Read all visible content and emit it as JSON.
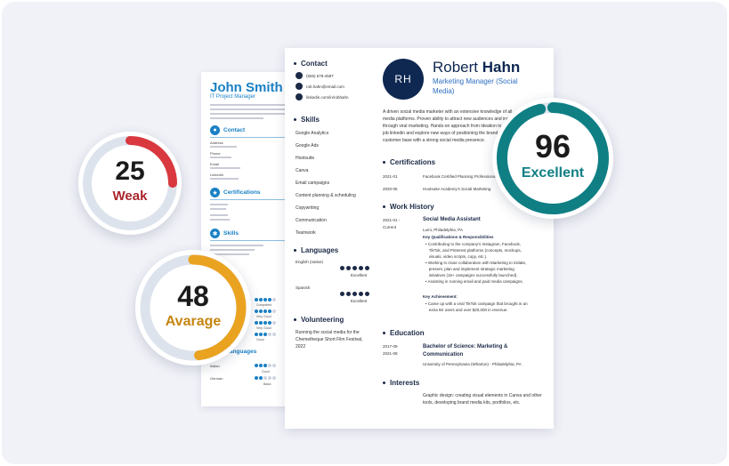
{
  "colors": {
    "frame_bg": "#f1f2f8",
    "navy": "#0e2851",
    "blue_accent": "#1a80c5",
    "weak": "#d9383f",
    "average": "#eaa321",
    "excellent": "#0f7f84",
    "ring_track": "#dde3ec"
  },
  "back_resume": {
    "name": "John Smith",
    "title": "IT Project Manager",
    "sections": {
      "contact": "Contact",
      "certifications": "Certifications",
      "skills": "Skills",
      "languages": "Languages"
    },
    "contact_labels": [
      "Address",
      "Phone",
      "Email",
      "LinkedIn"
    ],
    "skill_levels": [
      "Competent",
      "Very Good",
      "Very Good",
      "Good"
    ],
    "language_levels": [
      "Good",
      "Basic"
    ],
    "languages": [
      "Italian",
      "German"
    ]
  },
  "main_resume": {
    "initials": "RH",
    "first_name": "Robert",
    "last_name": "Hahn",
    "role": "Marketing Manager (Social Media)",
    "sections": {
      "contact": "Contact",
      "skills": "Skills",
      "languages": "Languages",
      "volunteering": "Volunteering",
      "certifications": "Certifications",
      "work_history": "Work History",
      "education": "Education",
      "interests": "Interests"
    },
    "contact_items": [
      {
        "icon": "phone-icon",
        "text": "(555) 678-4587"
      },
      {
        "icon": "email-icon",
        "text": "rob.hahn@email.com"
      },
      {
        "icon": "linkedin-icon",
        "text": "linkedin.com/in/robhahn"
      }
    ],
    "skills": [
      "Google Analytics",
      "Google Ads",
      "Hootsuite",
      "Canva",
      "Email campaigns",
      "Content planning & scheduling",
      "Copywriting",
      "Communication",
      "Teamwork"
    ],
    "languages": [
      {
        "name": "English (native)",
        "level": "Excellent"
      },
      {
        "name": "Spanish",
        "level": "Excellent"
      }
    ],
    "volunteering_text": [
      "Running the social media for the",
      "Chemetheque Short Film Festival,",
      "2022"
    ],
    "summary_lines": [
      "A driven social media marketer with an extensive knowledge of all",
      "media platforms. Proven ability to attract new audiences and increase",
      "through viral marketing. Hands-on approach from ideation to",
      "job linkedin and explore new ways of positioning the brand",
      "customer base with a strong social media presence."
    ],
    "certifications": [
      {
        "year": "2021-01",
        "name": "Facebook Certified Planning Professional"
      },
      {
        "year": "2020-05",
        "name": "Hootsuite Academy's Social Marketing"
      }
    ],
    "work": {
      "dates": "2021-01 -",
      "current": "Current",
      "title": "Social Media Assistant",
      "location": "Lumi, Philadelphia, PA",
      "key_label": "Key Qualifications & Responsibilities",
      "bullets": [
        "Contributing to the company's Instagram, Facebook,",
        "TikTok, and Pinterest platforms (concepts, mockups,",
        "visuals, video scripts, copy, etc.).",
        "Working in close collaboration with Marketing to initiate,",
        "present, plan and implement strategic marketing",
        "initiatives (15+ campaigns successfully launched).",
        "Assisting in running email and paid media campaigns."
      ],
      "achievement_label": "Key Achievement:",
      "achievement": [
        "Came up with a viral TikTok campaign that brought in an",
        "extra 5K users and over $20,000 in revenue."
      ]
    },
    "education": {
      "start": "2017-09",
      "end": "2021-08",
      "degree": [
        "Bachelor of Science: Marketing &",
        "Communication"
      ],
      "school": "University of Pennsylvania (Wharton) - Philadelphia, PA"
    },
    "interests_text": [
      "Graphic design: creating visual elements in Canva and other",
      "tools, developing brand media kits, portfolios, etc."
    ]
  },
  "scores": [
    {
      "id": "weak",
      "value": "25",
      "label": "Weak",
      "fraction": 0.25
    },
    {
      "id": "average",
      "value": "48",
      "label": "Avarage",
      "fraction": 0.48
    },
    {
      "id": "excellent",
      "value": "96",
      "label": "Excellent",
      "fraction": 0.96
    }
  ]
}
